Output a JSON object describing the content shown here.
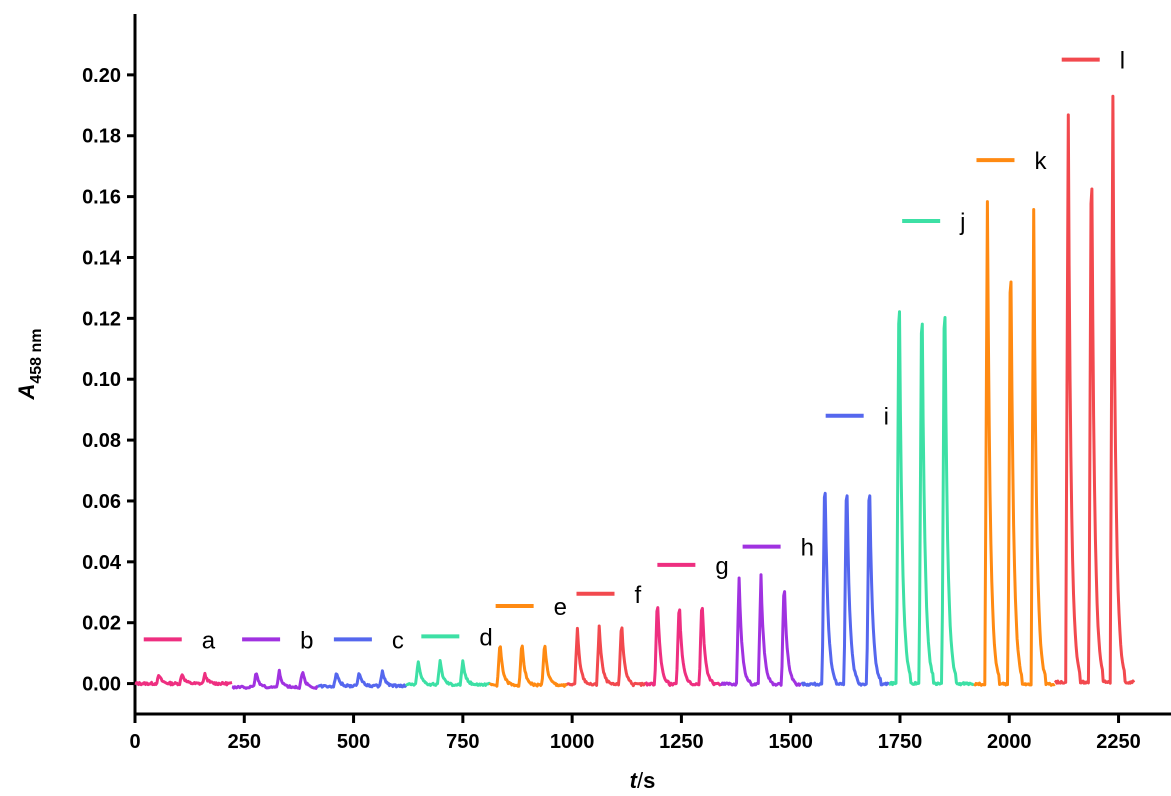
{
  "chart_data": {
    "type": "line",
    "xlabel": {
      "main": "t",
      "sep": "/",
      "unit": "s"
    },
    "ylabel": {
      "main": "A",
      "sub": "458 nm"
    },
    "xlim": [
      0,
      2370
    ],
    "ylim": [
      -0.01,
      0.22
    ],
    "xticks": [
      0,
      250,
      500,
      750,
      1000,
      1250,
      1500,
      1750,
      2000,
      2250
    ],
    "yticks": [
      0.0,
      0.02,
      0.04,
      0.06,
      0.08,
      0.1,
      0.12,
      0.14,
      0.16,
      0.18,
      0.2
    ],
    "xtick_labels": [
      "0",
      "250",
      "500",
      "750",
      "1000",
      "1250",
      "1500",
      "1750",
      "2000",
      "2250"
    ],
    "ytick_labels": [
      "0.00",
      "0.02",
      "0.04",
      "0.06",
      "0.08",
      "0.10",
      "0.12",
      "0.14",
      "0.16",
      "0.18",
      "0.20"
    ],
    "grid": false,
    "series": [
      {
        "name": "a",
        "color": "#ee2f80",
        "x_start": 0,
        "x_end": 222,
        "peaks_x": [
          55,
          108,
          160
        ],
        "peaks_y": [
          0.0028,
          0.0032,
          0.003
        ],
        "baseline": 0.0,
        "legend_x": 20,
        "legend_y": 0.0145
      },
      {
        "name": "b",
        "color": "#a032e0",
        "x_start": 222,
        "x_end": 418,
        "peaks_x": [
          277,
          330,
          383
        ],
        "peaks_y": [
          0.0038,
          0.004,
          0.0042
        ],
        "baseline": -0.0012,
        "legend_x": 245,
        "legend_y": 0.0145
      },
      {
        "name": "c",
        "color": "#5567ee",
        "x_start": 418,
        "x_end": 620,
        "peaks_x": [
          461,
          513,
          566
        ],
        "peaks_y": [
          0.004,
          0.004,
          0.0042
        ],
        "baseline": -0.0008,
        "legend_x": 455,
        "legend_y": 0.0145
      },
      {
        "name": "d",
        "color": "#3de0a5",
        "x_start": 620,
        "x_end": 812,
        "peaks_x": [
          648,
          698,
          750
        ],
        "peaks_y": [
          0.0075,
          0.0075,
          0.0073
        ],
        "baseline": -0.0003,
        "legend_x": 655,
        "legend_y": 0.0155
      },
      {
        "name": "e",
        "color": "#ff8a12",
        "x_start": 812,
        "x_end": 988,
        "peaks_x": [
          835,
          885,
          937
        ],
        "peaks_y": [
          0.014,
          0.014,
          0.014
        ],
        "baseline": -0.0005,
        "legend_x": 825,
        "legend_y": 0.0255
      },
      {
        "name": "f",
        "color": "#f2494e",
        "x_start": 988,
        "x_end": 1168,
        "peaks_x": [
          1012,
          1062,
          1113
        ],
        "peaks_y": [
          0.018,
          0.019,
          0.021
        ],
        "baseline": -0.0003,
        "legend_x": 1010,
        "legend_y": 0.0295
      },
      {
        "name": "g",
        "color": "#ee2f80",
        "x_start": 1168,
        "x_end": 1340,
        "peaks_x": [
          1195,
          1245,
          1297
        ],
        "peaks_y": [
          0.029,
          0.028,
          0.029
        ],
        "baseline": -0.0002,
        "legend_x": 1195,
        "legend_y": 0.039
      },
      {
        "name": "h",
        "color": "#a032e0",
        "x_start": 1340,
        "x_end": 1525,
        "peaks_x": [
          1382,
          1432,
          1485
        ],
        "peaks_y": [
          0.035,
          0.036,
          0.035
        ],
        "baseline": -0.0002,
        "legend_x": 1390,
        "legend_y": 0.045
      },
      {
        "name": "i",
        "color": "#5567ee",
        "x_start": 1525,
        "x_end": 1725,
        "peaks_x": [
          1578,
          1628,
          1680
        ],
        "peaks_y": [
          0.073,
          0.072,
          0.072
        ],
        "baseline": -0.0002,
        "legend_x": 1580,
        "legend_y": 0.088
      },
      {
        "name": "j",
        "color": "#3de0a5",
        "x_start": 1725,
        "x_end": 1920,
        "peaks_x": [
          1748,
          1800,
          1852
        ],
        "peaks_y": [
          0.142,
          0.138,
          0.14
        ],
        "baseline": 0.0,
        "legend_x": 1755,
        "legend_y": 0.152
      },
      {
        "name": "k",
        "color": "#ff8a12",
        "x_start": 1920,
        "x_end": 2105,
        "peaks_x": [
          1950,
          2003,
          2056
        ],
        "peaks_y": [
          0.158,
          0.154,
          0.156
        ],
        "baseline": -0.0002,
        "legend_x": 1925,
        "legend_y": 0.172
      },
      {
        "name": "l",
        "color": "#f2494e",
        "x_start": 2105,
        "x_end": 2285,
        "peaks_x": [
          2135,
          2188,
          2237
        ],
        "peaks_y": [
          0.187,
          0.189,
          0.193
        ],
        "baseline": 0.0005,
        "legend_x": 2120,
        "legend_y": 0.205
      }
    ]
  }
}
